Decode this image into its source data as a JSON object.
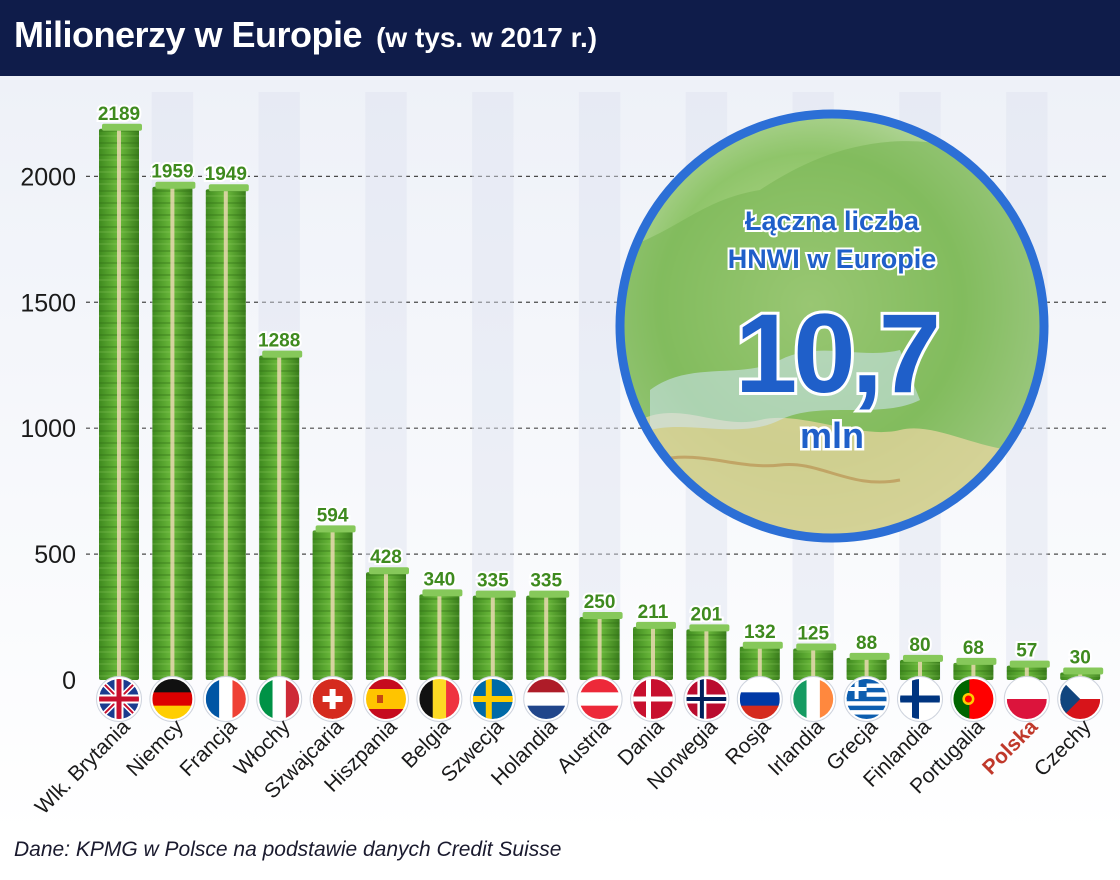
{
  "header": {
    "title": "Milionerzy w Europie",
    "subtitle": "(w tys. w 2017 r.)"
  },
  "source": "Dane: KPMG w Polsce na podstawie danych Credit Suisse",
  "inset": {
    "line1": "Łączna liczba",
    "line2": "HNWI w Europie",
    "value": "10,7",
    "unit": "mln"
  },
  "colors": {
    "header_bg": "#0f1c4a",
    "bar_green": "#4f9a2a",
    "label_green": "#3e8a1e",
    "highlight_red": "#c0392b",
    "inset_blue": "#1f5fc9",
    "inset_ring": "#2c6fd6"
  },
  "chart_data": {
    "type": "bar",
    "categories": [
      "Wlk. Brytania",
      "Niemcy",
      "Francja",
      "Włochy",
      "Szwajcaria",
      "Hiszpania",
      "Belgia",
      "Szwecja",
      "Holandia",
      "Austria",
      "Dania",
      "Norwegia",
      "Rosja",
      "Irlandia",
      "Grecja",
      "Finlandia",
      "Portugalia",
      "Polska",
      "Czechy"
    ],
    "values": [
      2189,
      1959,
      1949,
      1288,
      594,
      428,
      340,
      335,
      335,
      250,
      211,
      201,
      132,
      125,
      88,
      80,
      68,
      57,
      30
    ],
    "value_labels": [
      "2189",
      "1959",
      "1949",
      "1288",
      "594",
      "428",
      "340",
      "335",
      "335",
      "250",
      "211",
      "201",
      "132",
      "125",
      "88",
      "80",
      "68",
      "57",
      "30"
    ],
    "highlight": "Polska",
    "flags": [
      "flag-united-kingdom-icon",
      "flag-germany-icon",
      "flag-france-icon",
      "flag-italy-icon",
      "flag-switzerland-icon",
      "flag-spain-icon",
      "flag-belgium-icon",
      "flag-sweden-icon",
      "flag-netherlands-icon",
      "flag-austria-icon",
      "flag-denmark-icon",
      "flag-norway-icon",
      "flag-russia-icon",
      "flag-ireland-icon",
      "flag-greece-icon",
      "flag-finland-icon",
      "flag-portugal-icon",
      "flag-poland-icon",
      "flag-czechia-icon"
    ],
    "title": "Milionerzy w Europie",
    "xlabel": "",
    "ylabel": "",
    "ylim": [
      0,
      2200
    ],
    "yticks": [
      0,
      500,
      1000,
      1500,
      2000
    ],
    "ytick_labels": [
      "0",
      "500",
      "1000",
      "1500",
      "2000"
    ],
    "grid": true
  }
}
